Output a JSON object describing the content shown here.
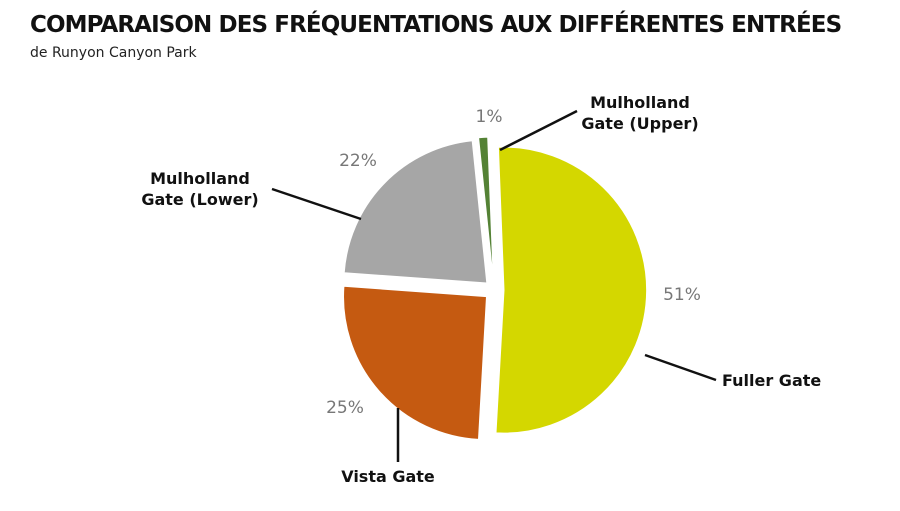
{
  "title": "COMPARAISON DES FRÉQUENTATIONS AUX DIFFÉRENTES ENTRÉES",
  "subtitle": "de Runyon Canyon Park",
  "chart_data": {
    "type": "pie",
    "title": "COMPARAISON DES FRÉQUENTATIONS AUX DIFFÉRENTES ENTRÉES",
    "subtitle": "de Runyon Canyon Park",
    "exploded": true,
    "slices": [
      {
        "label": [
          "Fuller Gate"
        ],
        "value": 51,
        "value_label": "51%",
        "color": "#d4d700"
      },
      {
        "label": [
          "Vista Gate"
        ],
        "value": 25,
        "value_label": "25%",
        "color": "#c55a11"
      },
      {
        "label": [
          "Mulholland",
          "Gate (Lower)"
        ],
        "value": 22,
        "value_label": "22%",
        "color": "#a6a6a6"
      },
      {
        "label": [
          "Mulholland",
          "Gate (Upper)"
        ],
        "value": 1,
        "value_label": "1%",
        "color": "#548235"
      }
    ]
  }
}
